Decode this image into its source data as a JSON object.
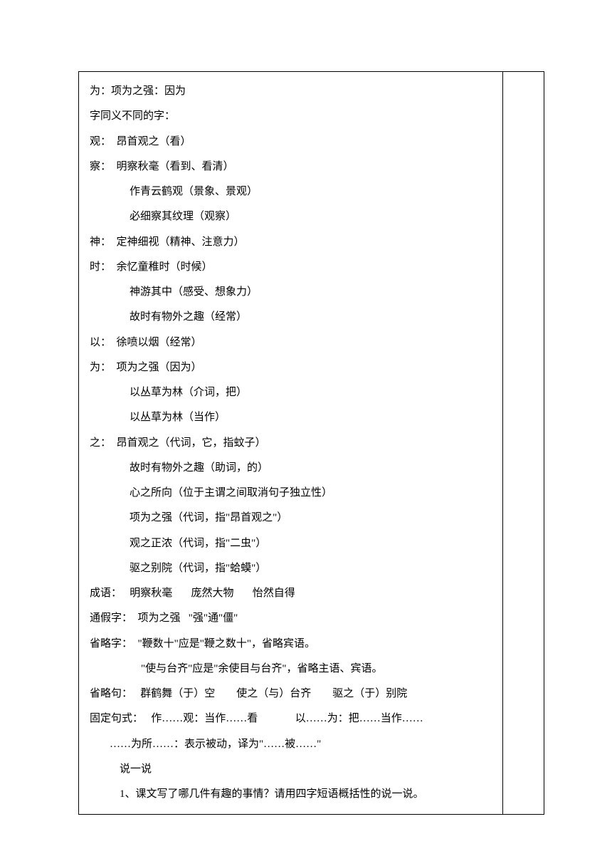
{
  "document": {
    "font_family": "SimSun",
    "font_size": 15,
    "line_height": 2.35,
    "text_color": "#000000",
    "background_color": "#ffffff",
    "border_color": "#000000",
    "lines": [
      {
        "text": "为：项为之强：因为",
        "indent": 0
      },
      {
        "text": "字同义不同的字：",
        "indent": 0
      },
      {
        "text": "观：  昂首观之（看）",
        "indent": 0
      },
      {
        "text": "察：  明察秋毫（看到、看清）",
        "indent": 0
      },
      {
        "text": "作青云鹤观（景象、景观）",
        "indent": 2
      },
      {
        "text": "必细察其纹理（观察）",
        "indent": 2
      },
      {
        "text": "神：  定神细视（精神、注意力）",
        "indent": 0
      },
      {
        "text": "时：  余忆童稚时（时候）",
        "indent": 0
      },
      {
        "text": "神游其中（感受、想象力）",
        "indent": 2
      },
      {
        "text": "故时有物外之趣（经常）",
        "indent": 2
      },
      {
        "text": "以：  徐喷以烟（经常）",
        "indent": 0
      },
      {
        "text": "为：  项为之强（因为）",
        "indent": 0
      },
      {
        "text": "以丛草为林（介词，把）",
        "indent": 2
      },
      {
        "text": "以丛草为林（当作）",
        "indent": 2
      },
      {
        "text": "之：  昂首观之（代词，它，指蚊子）",
        "indent": 0
      },
      {
        "text": "故时有物外之趣（助词，的）",
        "indent": 2
      },
      {
        "text": "心之所向（位于主谓之间取消句子独立性）",
        "indent": 2
      },
      {
        "text": "项为之强（代词，指\"昂首观之\"）",
        "indent": 2
      },
      {
        "text": "观之正浓（代词，指\"二虫\"）",
        "indent": 2
      },
      {
        "text": "驱之别院（代词，指\"蛤蟆\"）",
        "indent": 2
      },
      {
        "text": "成语：   明察秋毫       庞然大物       怡然自得",
        "indent": 0
      },
      {
        "text": "通假字：  项为之强   \"强\"通\"僵\"",
        "indent": 0
      },
      {
        "text": "省略字：  \"鞭数十\"应是\"鞭之数十\"，省略宾语。",
        "indent": 0
      },
      {
        "text": "\"使与台齐\"应是\"余使目与台齐\"，省略主语、宾语。",
        "indent": 3
      },
      {
        "text": "省略句：   群鹤舞（于）空        使之（与）台齐        驱之（于）别院",
        "indent": 0
      },
      {
        "text": "固定句式：   作……观：当作……看              以……为：把……当作……",
        "indent": 0
      },
      {
        "text": "……为所……：表示被动，译为\"……被……\"",
        "indent": 1
      },
      {
        "text": "说一说",
        "indent": 4
      },
      {
        "text": "1、课文写了哪几件有趣的事情？请用四字短语概括性的说一说。",
        "indent": 4
      }
    ]
  }
}
